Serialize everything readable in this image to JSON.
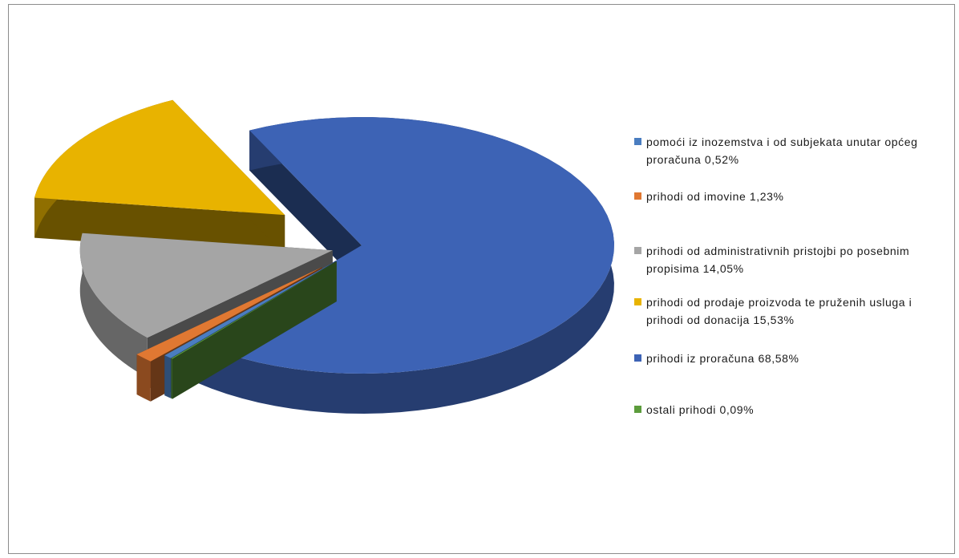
{
  "chart_data": {
    "type": "pie",
    "title": "",
    "legend_position": "right",
    "slices": [
      {
        "label": "pomoći iz inozemstva i od subjekata unutar općeg proračuna 0,52%",
        "value": 0.52,
        "color": "#4a7dc0"
      },
      {
        "label": "prihodi od imovine 1,23%",
        "value": 1.23,
        "color": "#e07832"
      },
      {
        "label": "prihodi od administrativnih pristojbi po posebnim propisima 14,05%",
        "value": 14.05,
        "color": "#a5a5a5"
      },
      {
        "label": "prihodi od prodaje proizvoda te pruženih usluga i prihodi od donacija 15,53%",
        "value": 15.53,
        "color": "#e8b300"
      },
      {
        "label": "prihodi iz proračuna 68,58%",
        "value": 68.58,
        "color": "#3d63b5"
      },
      {
        "label": "ostali prihodi 0,09%",
        "value": 0.09,
        "color": "#5c9c3c"
      }
    ]
  }
}
